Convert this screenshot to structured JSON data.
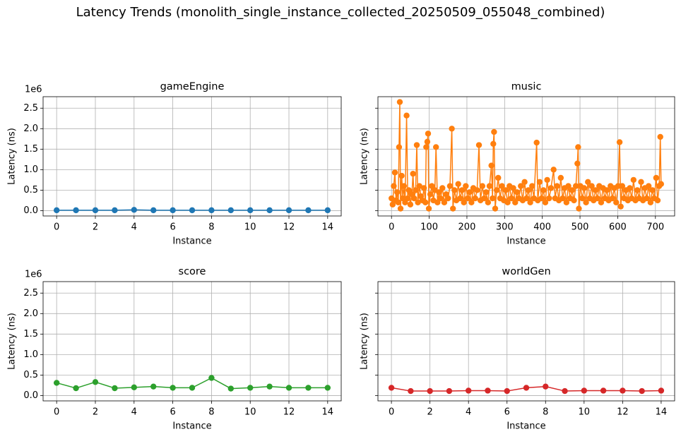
{
  "title": "Latency Trends (monolith_single_instance_collected_20250509_055048_combined)",
  "chart_data": [
    {
      "type": "line",
      "title": "gameEngine",
      "x_label": "Instance",
      "y_label": "Latency (ns)",
      "y_offset_label": "1e6",
      "color": "#1f77b4",
      "grid": true,
      "ytick_labels": true,
      "x": [
        0,
        1,
        2,
        3,
        4,
        5,
        6,
        7,
        8,
        9,
        10,
        11,
        12,
        13,
        14
      ],
      "values": [
        0.01,
        0.01,
        0.01,
        0.01,
        0.02,
        0.01,
        0.01,
        0.01,
        0.01,
        0.01,
        0.01,
        0.01,
        0.01,
        0.01,
        0.01
      ],
      "xlim": [
        -0.7,
        14.7
      ],
      "xticks": [
        0,
        2,
        4,
        6,
        8,
        10,
        12,
        14
      ],
      "ylim": [
        -0.13,
        2.78
      ],
      "yticks": [
        {
          "value": 0,
          "label": "0.0"
        },
        0.5,
        {
          "value": 1,
          "label": "1.0"
        },
        1.5,
        {
          "value": 2,
          "label": "2.0"
        },
        2.5
      ]
    },
    {
      "type": "line",
      "title": "music",
      "x_label": "Instance",
      "y_label": "Latency (ns)",
      "color": "#ff7f0e",
      "grid": true,
      "ytick_labels": false,
      "x": [
        0,
        3,
        6,
        9,
        12,
        15,
        18,
        20,
        22,
        24,
        27,
        30,
        33,
        36,
        40,
        43,
        46,
        50,
        54,
        57,
        60,
        64,
        67,
        70,
        74,
        78,
        82,
        86,
        90,
        92,
        95,
        97,
        99,
        103,
        107,
        111,
        115,
        118,
        122,
        126,
        130,
        135,
        140,
        145,
        150,
        155,
        160,
        163,
        167,
        172,
        177,
        182,
        187,
        192,
        197,
        202,
        207,
        212,
        217,
        222,
        227,
        232,
        236,
        241,
        246,
        251,
        256,
        260,
        265,
        268,
        270,
        272,
        275,
        279,
        283,
        288,
        293,
        298,
        303,
        308,
        313,
        318,
        323,
        328,
        333,
        338,
        343,
        348,
        353,
        358,
        363,
        368,
        373,
        378,
        385,
        388,
        393,
        398,
        403,
        408,
        413,
        418,
        423,
        430,
        434,
        439,
        444,
        449,
        454,
        459,
        464,
        469,
        474,
        479,
        484,
        489,
        493,
        495,
        497,
        501,
        506,
        511,
        516,
        521,
        526,
        531,
        536,
        541,
        546,
        551,
        556,
        561,
        566,
        571,
        576,
        581,
        586,
        591,
        596,
        601,
        605,
        608,
        612,
        617,
        622,
        627,
        632,
        637,
        642,
        647,
        652,
        657,
        662,
        667,
        672,
        677,
        682,
        687,
        692,
        697,
        702,
        706,
        710,
        713,
        715
      ],
      "values": [
        0.3,
        0.15,
        0.6,
        0.93,
        0.25,
        0.45,
        0.2,
        1.55,
        2.65,
        0.05,
        0.85,
        0.3,
        0.6,
        0.2,
        2.32,
        0.3,
        0.5,
        0.15,
        0.4,
        0.9,
        0.3,
        0.5,
        1.6,
        0.2,
        0.6,
        0.35,
        0.25,
        0.55,
        0.2,
        1.55,
        1.68,
        1.88,
        0.05,
        0.4,
        0.6,
        0.25,
        0.5,
        1.55,
        0.2,
        0.45,
        0.3,
        0.55,
        0.2,
        0.4,
        0.3,
        0.6,
        2.0,
        0.05,
        0.5,
        0.25,
        0.65,
        0.3,
        0.5,
        0.2,
        0.6,
        0.3,
        0.45,
        0.2,
        0.55,
        0.3,
        0.5,
        1.6,
        0.25,
        0.6,
        0.3,
        0.45,
        0.2,
        0.6,
        1.1,
        0.3,
        1.63,
        1.92,
        0.05,
        0.5,
        0.8,
        0.3,
        0.6,
        0.25,
        0.5,
        0.2,
        0.6,
        0.3,
        0.55,
        0.2,
        0.45,
        0.3,
        0.6,
        0.25,
        0.7,
        0.3,
        0.5,
        0.2,
        0.6,
        0.3,
        1.66,
        0.25,
        0.7,
        0.3,
        0.5,
        0.2,
        0.75,
        0.3,
        0.55,
        1.0,
        0.3,
        0.6,
        0.25,
        0.8,
        0.3,
        0.55,
        0.2,
        0.6,
        0.3,
        0.5,
        0.25,
        0.6,
        1.15,
        1.55,
        0.05,
        0.6,
        0.3,
        0.55,
        0.2,
        0.7,
        0.3,
        0.6,
        0.25,
        0.5,
        0.3,
        0.6,
        0.2,
        0.55,
        0.3,
        0.5,
        0.25,
        0.6,
        0.3,
        0.55,
        0.2,
        0.6,
        1.67,
        0.1,
        0.6,
        0.3,
        0.5,
        0.25,
        0.55,
        0.3,
        0.75,
        0.25,
        0.5,
        0.3,
        0.7,
        0.25,
        0.55,
        0.3,
        0.6,
        0.2,
        0.5,
        0.3,
        0.8,
        0.25,
        0.6,
        1.8,
        0.65
      ],
      "xlim": [
        -36,
        751
      ],
      "xticks": [
        0,
        100,
        200,
        300,
        400,
        500,
        600,
        700
      ],
      "ylim": [
        -0.13,
        2.78
      ],
      "yticks": [
        0,
        0.5,
        1,
        1.5,
        2,
        2.5
      ]
    },
    {
      "type": "line",
      "title": "score",
      "x_label": "Instance",
      "y_label": "Latency (ns)",
      "y_offset_label": "1e6",
      "color": "#2ca02c",
      "grid": true,
      "ytick_labels": true,
      "x": [
        0,
        1,
        2,
        3,
        4,
        5,
        6,
        7,
        8,
        9,
        10,
        11,
        12,
        13,
        14
      ],
      "values": [
        0.31,
        0.18,
        0.33,
        0.18,
        0.2,
        0.22,
        0.19,
        0.19,
        0.43,
        0.17,
        0.19,
        0.22,
        0.19,
        0.19,
        0.19
      ],
      "xlim": [
        -0.7,
        14.7
      ],
      "xticks": [
        0,
        2,
        4,
        6,
        8,
        10,
        12,
        14
      ],
      "ylim": [
        -0.13,
        2.78
      ],
      "yticks": [
        {
          "value": 0,
          "label": "0.0"
        },
        0.5,
        {
          "value": 1,
          "label": "1.0"
        },
        1.5,
        {
          "value": 2,
          "label": "2.0"
        },
        2.5
      ]
    },
    {
      "type": "line",
      "title": "worldGen",
      "x_label": "Instance",
      "y_label": "Latency (ns)",
      "color": "#d62728",
      "grid": true,
      "ytick_labels": false,
      "x": [
        0,
        1,
        2,
        3,
        4,
        5,
        6,
        7,
        8,
        9,
        10,
        11,
        12,
        13,
        14
      ],
      "values": [
        0.19,
        0.11,
        0.11,
        0.11,
        0.12,
        0.12,
        0.11,
        0.19,
        0.22,
        0.11,
        0.12,
        0.12,
        0.12,
        0.11,
        0.12
      ],
      "xlim": [
        -0.7,
        14.7
      ],
      "xticks": [
        0,
        2,
        4,
        6,
        8,
        10,
        12,
        14
      ],
      "ylim": [
        -0.13,
        2.78
      ],
      "yticks": [
        0,
        0.5,
        1,
        1.5,
        2,
        2.5
      ]
    }
  ]
}
